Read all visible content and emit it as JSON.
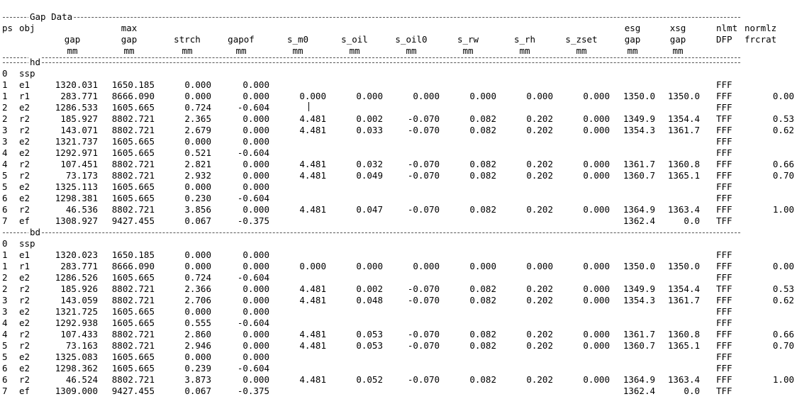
{
  "section_title": "Gap Data",
  "headers": [
    [
      "ps",
      "",
      ""
    ],
    [
      "obj",
      "",
      ""
    ],
    [
      "",
      "gap",
      "mm"
    ],
    [
      "max",
      "gap",
      "mm"
    ],
    [
      "",
      "strch",
      "mm"
    ],
    [
      "",
      "gapof",
      "mm"
    ],
    [
      "",
      "s_m0",
      "mm"
    ],
    [
      "",
      "s_oil",
      "mm"
    ],
    [
      "",
      "s_oil0",
      "mm"
    ],
    [
      "",
      "s_rw",
      "mm"
    ],
    [
      "",
      "s_rh",
      "mm"
    ],
    [
      "",
      "s_zset",
      "mm"
    ],
    [
      "esg",
      "gap",
      "mm"
    ],
    [
      "xsg",
      "gap",
      "mm"
    ],
    [
      "nlmt",
      "DFP",
      ""
    ],
    [
      "normlz",
      "frcrat",
      ""
    ]
  ],
  "sections": [
    {
      "label": "hd",
      "rows": [
        [
          "0",
          "ssp",
          "",
          "",
          "",
          "",
          "",
          "",
          "",
          "",
          "",
          "",
          "",
          "",
          "",
          ""
        ],
        [
          "1",
          "e1",
          "1320.031",
          "1650.185",
          "0.000",
          "0.000",
          "",
          "",
          "",
          "",
          "",
          "",
          "",
          "",
          "FFF",
          ""
        ],
        [
          "1",
          "r1",
          "283.771",
          "8666.090",
          "0.000",
          "0.000",
          "0.000",
          "0.000",
          "0.000",
          "0.000",
          "0.000",
          "0.000",
          "1350.0",
          "1350.0",
          "FFF",
          "0.00"
        ],
        [
          "2",
          "e2",
          "1286.533",
          "1605.665",
          "0.724",
          "-0.604",
          "",
          "",
          "",
          "",
          "",
          "",
          "",
          "",
          "FFF",
          ""
        ],
        [
          "2",
          "r2",
          "185.927",
          "8802.721",
          "2.365",
          "0.000",
          "4.481",
          "0.002",
          "-0.070",
          "0.082",
          "0.202",
          "0.000",
          "1349.9",
          "1354.4",
          "TFF",
          "0.53"
        ],
        [
          "3",
          "r2",
          "143.071",
          "8802.721",
          "2.679",
          "0.000",
          "4.481",
          "0.033",
          "-0.070",
          "0.082",
          "0.202",
          "0.000",
          "1354.3",
          "1361.7",
          "FFF",
          "0.62"
        ],
        [
          "3",
          "e2",
          "1321.737",
          "1605.665",
          "0.000",
          "0.000",
          "",
          "",
          "",
          "",
          "",
          "",
          "",
          "",
          "FFF",
          ""
        ],
        [
          "4",
          "e2",
          "1292.971",
          "1605.665",
          "0.521",
          "-0.604",
          "",
          "",
          "",
          "",
          "",
          "",
          "",
          "",
          "FFF",
          ""
        ],
        [
          "4",
          "r2",
          "107.451",
          "8802.721",
          "2.821",
          "0.000",
          "4.481",
          "0.032",
          "-0.070",
          "0.082",
          "0.202",
          "0.000",
          "1361.7",
          "1360.8",
          "FFF",
          "0.66"
        ],
        [
          "5",
          "r2",
          "73.173",
          "8802.721",
          "2.932",
          "0.000",
          "4.481",
          "0.049",
          "-0.070",
          "0.082",
          "0.202",
          "0.000",
          "1360.7",
          "1365.1",
          "FFF",
          "0.70"
        ],
        [
          "5",
          "e2",
          "1325.113",
          "1605.665",
          "0.000",
          "0.000",
          "",
          "",
          "",
          "",
          "",
          "",
          "",
          "",
          "FFF",
          ""
        ],
        [
          "6",
          "e2",
          "1298.381",
          "1605.665",
          "0.230",
          "-0.604",
          "",
          "",
          "",
          "",
          "",
          "",
          "",
          "",
          "FFF",
          ""
        ],
        [
          "6",
          "r2",
          "46.536",
          "8802.721",
          "3.856",
          "0.000",
          "4.481",
          "0.047",
          "-0.070",
          "0.082",
          "0.202",
          "0.000",
          "1364.9",
          "1363.4",
          "FFF",
          "1.00"
        ],
        [
          "7",
          "ef",
          "1308.927",
          "9427.455",
          "0.067",
          "-0.375",
          "",
          "",
          "",
          "",
          "",
          "",
          "1362.4",
          "0.0",
          "TFF",
          ""
        ]
      ]
    },
    {
      "label": "bd",
      "rows": [
        [
          "0",
          "ssp",
          "",
          "",
          "",
          "",
          "",
          "",
          "",
          "",
          "",
          "",
          "",
          "",
          "",
          ""
        ],
        [
          "1",
          "e1",
          "1320.023",
          "1650.185",
          "0.000",
          "0.000",
          "",
          "",
          "",
          "",
          "",
          "",
          "",
          "",
          "FFF",
          ""
        ],
        [
          "1",
          "r1",
          "283.771",
          "8666.090",
          "0.000",
          "0.000",
          "0.000",
          "0.000",
          "0.000",
          "0.000",
          "0.000",
          "0.000",
          "1350.0",
          "1350.0",
          "FFF",
          "0.00"
        ],
        [
          "2",
          "e2",
          "1286.526",
          "1605.665",
          "0.724",
          "-0.604",
          "",
          "",
          "",
          "",
          "",
          "",
          "",
          "",
          "FFF",
          ""
        ],
        [
          "2",
          "r2",
          "185.926",
          "8802.721",
          "2.366",
          "0.000",
          "4.481",
          "0.002",
          "-0.070",
          "0.082",
          "0.202",
          "0.000",
          "1349.9",
          "1354.4",
          "TFF",
          "0.53"
        ],
        [
          "3",
          "r2",
          "143.059",
          "8802.721",
          "2.706",
          "0.000",
          "4.481",
          "0.048",
          "-0.070",
          "0.082",
          "0.202",
          "0.000",
          "1354.3",
          "1361.7",
          "FFF",
          "0.62"
        ],
        [
          "3",
          "e2",
          "1321.725",
          "1605.665",
          "0.000",
          "0.000",
          "",
          "",
          "",
          "",
          "",
          "",
          "",
          "",
          "FFF",
          ""
        ],
        [
          "4",
          "e2",
          "1292.938",
          "1605.665",
          "0.555",
          "-0.604",
          "",
          "",
          "",
          "",
          "",
          "",
          "",
          "",
          "FFF",
          ""
        ],
        [
          "4",
          "r2",
          "107.433",
          "8802.721",
          "2.860",
          "0.000",
          "4.481",
          "0.053",
          "-0.070",
          "0.082",
          "0.202",
          "0.000",
          "1361.7",
          "1360.8",
          "FFF",
          "0.66"
        ],
        [
          "5",
          "r2",
          "73.163",
          "8802.721",
          "2.946",
          "0.000",
          "4.481",
          "0.053",
          "-0.070",
          "0.082",
          "0.202",
          "0.000",
          "1360.7",
          "1365.1",
          "FFF",
          "0.70"
        ],
        [
          "5",
          "e2",
          "1325.083",
          "1605.665",
          "0.000",
          "0.000",
          "",
          "",
          "",
          "",
          "",
          "",
          "",
          "",
          "FFF",
          ""
        ],
        [
          "6",
          "e2",
          "1298.362",
          "1605.665",
          "0.239",
          "-0.604",
          "",
          "",
          "",
          "",
          "",
          "",
          "",
          "",
          "FFF",
          ""
        ],
        [
          "6",
          "r2",
          "46.524",
          "8802.721",
          "3.873",
          "0.000",
          "4.481",
          "0.052",
          "-0.070",
          "0.082",
          "0.202",
          "0.000",
          "1364.9",
          "1363.4",
          "FFF",
          "1.00"
        ],
        [
          "7",
          "ef",
          "1309.000",
          "9427.455",
          "0.067",
          "-0.375",
          "",
          "",
          "",
          "",
          "",
          "",
          "1362.4",
          "0.0",
          "TFF",
          ""
        ]
      ]
    }
  ]
}
